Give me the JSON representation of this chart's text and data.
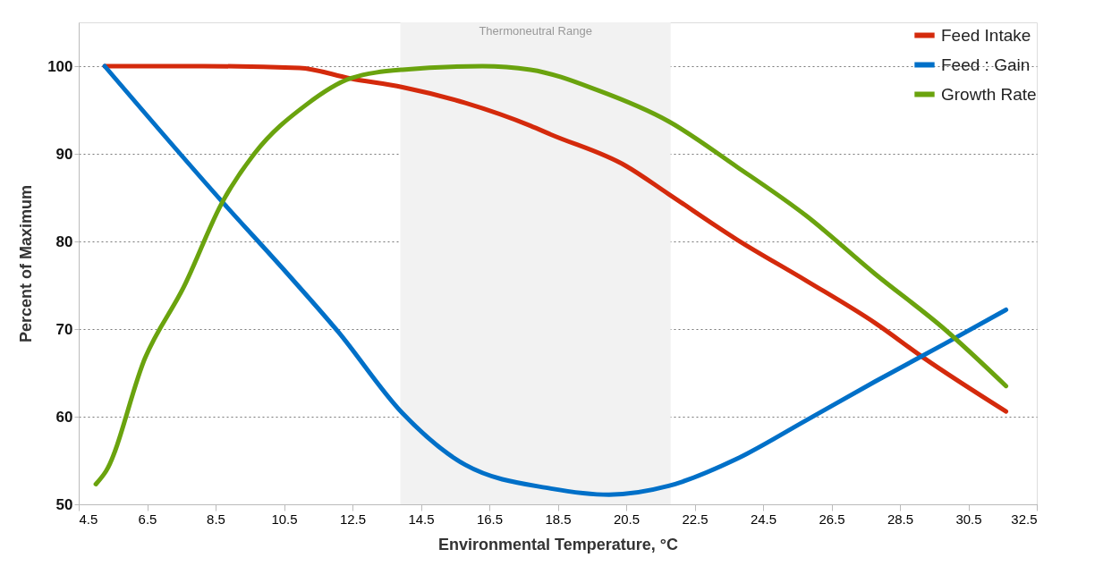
{
  "chart_data": {
    "type": "line",
    "xlabel": "Environmental Temperature, °C",
    "ylabel": "Percent of Maximum",
    "xlim": [
      4.5,
      32.5
    ],
    "xticks": [
      4.5,
      6.5,
      8.5,
      10.5,
      12.5,
      14.5,
      16.5,
      18.5,
      20.5,
      22.5,
      24.5,
      26.5,
      28.5,
      30.5,
      32.5
    ],
    "ylim": [
      50,
      105
    ],
    "yticks": [
      50,
      60,
      70,
      80,
      90,
      100
    ],
    "grid": "y",
    "legend": "top right",
    "marker": "none",
    "line_style": "solid",
    "bands": [
      {
        "axis": "x",
        "from": 13.9,
        "to": 21.8,
        "label": "Thermoneutral Range",
        "color": "#f2f2f2"
      }
    ],
    "series": [
      {
        "name": "Feed Intake",
        "color": "#d42a0c",
        "x": [
          5.26,
          8.13,
          10.95,
          12.44,
          13.96,
          15.8,
          17.7,
          18.3,
          20.5,
          21.74,
          23.74,
          25.77,
          27.77,
          29.2,
          31.6
        ],
        "values": [
          100,
          100,
          99.8,
          98.6,
          97.6,
          95.8,
          93.2,
          92.2,
          88.6,
          85.4,
          80.2,
          75.5,
          70.7,
          66.7,
          60.6
        ]
      },
      {
        "name": "Feed : Gain",
        "color": "#0070c8",
        "x": [
          5.26,
          8.7,
          10.58,
          12.08,
          13.96,
          15.8,
          18.3,
          20.0,
          21.74,
          23.74,
          25.77,
          27.77,
          29.8,
          31.6
        ],
        "values": [
          100,
          84.5,
          76.4,
          69.7,
          60.4,
          54.5,
          51.8,
          51.1,
          52.1,
          55.2,
          59.6,
          64.0,
          68.3,
          72.2
        ]
      },
      {
        "name": "Growth Rate",
        "color": "#6aa30e",
        "x": [
          5.0,
          5.3,
          6.44,
          7.57,
          8.7,
          9.63,
          11.15,
          12.44,
          13.96,
          16.3,
          17.7,
          19.7,
          21.74,
          23.74,
          25.77,
          27.77,
          29.8,
          31.6
        ],
        "values": [
          52.3,
          53.8,
          66.7,
          74.8,
          84.5,
          90.0,
          95.6,
          98.6,
          99.6,
          100,
          99.6,
          97.2,
          93.7,
          88.5,
          82.9,
          76.3,
          70.0,
          63.5
        ]
      }
    ]
  }
}
